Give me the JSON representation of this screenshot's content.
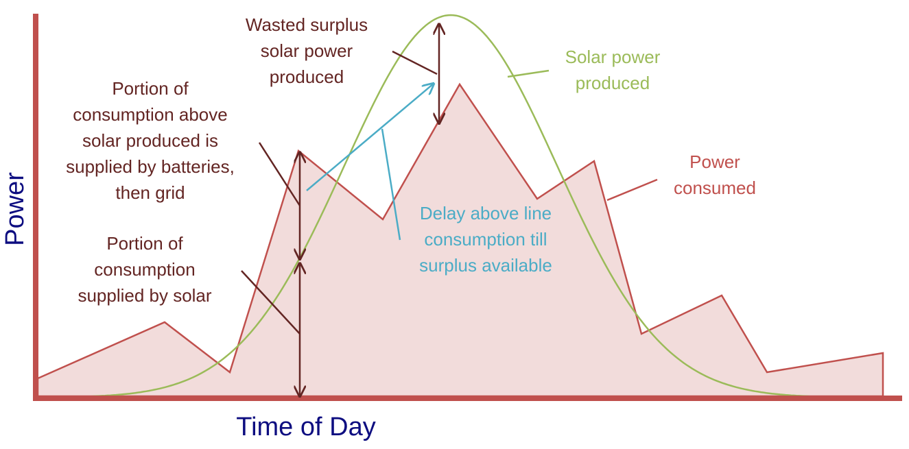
{
  "axes": {
    "y_label": "Power",
    "x_label": "Time of Day"
  },
  "annotations": [
    {
      "lines": [
        "Wasted surplus",
        "solar power",
        "produced"
      ]
    },
    {
      "lines": [
        "Portion of",
        "consumption above",
        "solar produced is",
        "supplied by batteries,",
        "then grid"
      ]
    },
    {
      "lines": [
        "Portion of",
        "consumption",
        "supplied by solar"
      ]
    },
    {
      "lines": [
        "Solar power",
        "produced"
      ]
    },
    {
      "lines": [
        "Power",
        "consumed"
      ]
    },
    {
      "lines": [
        "Delay above line",
        "consumption till",
        "surplus available"
      ]
    }
  ]
}
